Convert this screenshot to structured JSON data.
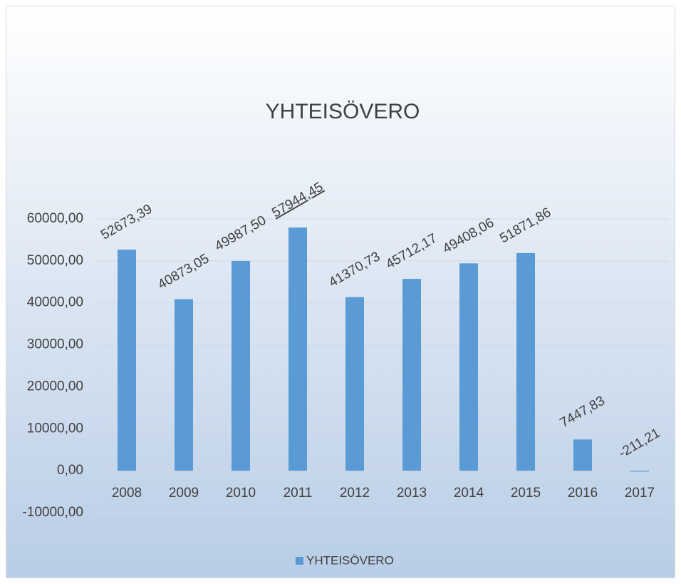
{
  "chart_data": {
    "type": "bar",
    "title": "YHTEISÖVERO",
    "categories": [
      "2008",
      "2009",
      "2010",
      "2011",
      "2012",
      "2013",
      "2014",
      "2015",
      "2016",
      "2017"
    ],
    "series": [
      {
        "name": "YHTEISÖVERO",
        "color": "#5b9bd5",
        "values": [
          52673.39,
          40873.05,
          49987.5,
          57944.45,
          41370.73,
          45712.17,
          49408.06,
          51871.86,
          7447.83,
          -211.21
        ],
        "value_labels": [
          "52673,39",
          "40873,05",
          "49987,50",
          "57944,45",
          "41370,73",
          "45712,17",
          "49408,06",
          "51871,86",
          "7447,83",
          "-211,21"
        ]
      }
    ],
    "ylim": [
      -10000,
      60000
    ],
    "yticks": [
      {
        "value": -10000,
        "label": "-10000,00"
      },
      {
        "value": 0,
        "label": "0,00"
      },
      {
        "value": 10000,
        "label": "10000,00"
      },
      {
        "value": 20000,
        "label": "20000,00"
      },
      {
        "value": 30000,
        "label": "30000,00"
      },
      {
        "value": 40000,
        "label": "40000,00"
      },
      {
        "value": 50000,
        "label": "50000,00"
      },
      {
        "value": 60000,
        "label": "60000,00"
      }
    ],
    "grid": true,
    "legend": "bottom"
  }
}
